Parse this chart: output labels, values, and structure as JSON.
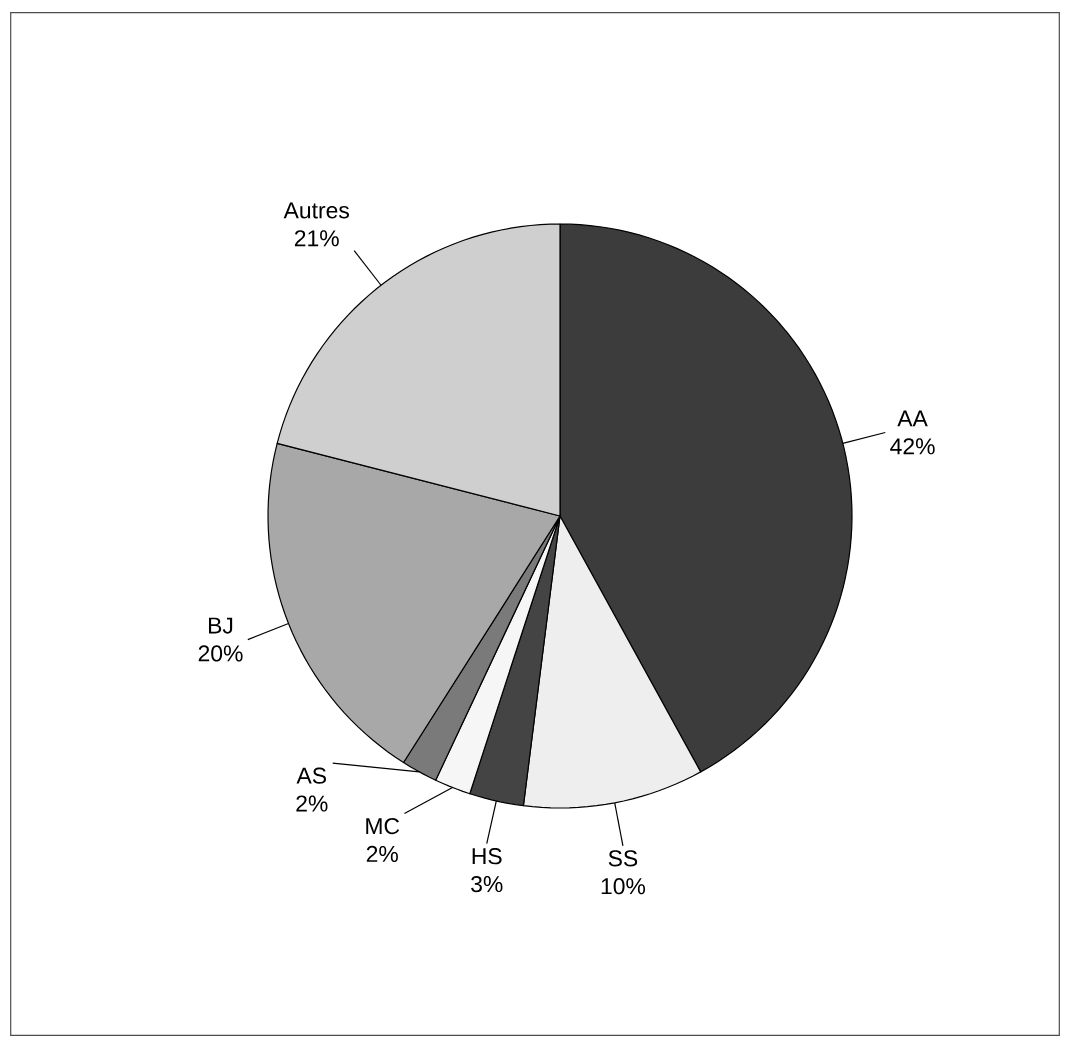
{
  "chart_data": {
    "type": "pie",
    "categories": [
      "AA",
      "SS",
      "HS",
      "MC",
      "AS",
      "BJ",
      "Autres"
    ],
    "values": [
      42,
      10,
      3,
      2,
      2,
      20,
      21
    ],
    "value_labels": [
      "42%",
      "10%",
      "3%",
      "2%",
      "2%",
      "20%",
      "21%"
    ],
    "colors": [
      "#3c3c3c",
      "#eeeeee",
      "#444444",
      "#f6f6f6",
      "#7a7a7a",
      "#a8a8a8",
      "#cfcfcf"
    ]
  }
}
